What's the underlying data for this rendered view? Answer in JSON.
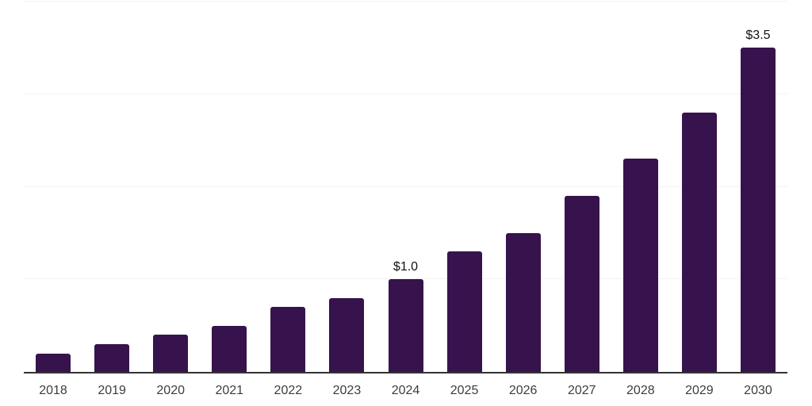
{
  "page": {
    "background": "#FFFFFF"
  },
  "chart": {
    "bar_color": "#36134D",
    "axis_line_color": "#333333",
    "gridline_color": "#F2F2F2",
    "tick_label_color": "#3D3D3D",
    "value_label_color": "#121212"
  },
  "chart_data": {
    "type": "bar",
    "categories": [
      "2018",
      "2019",
      "2020",
      "2021",
      "2022",
      "2023",
      "2024",
      "2025",
      "2026",
      "2027",
      "2028",
      "2029",
      "2030"
    ],
    "values": [
      0.2,
      0.3,
      0.4,
      0.5,
      0.7,
      0.8,
      1.0,
      1.3,
      1.5,
      1.9,
      2.3,
      2.8,
      3.5
    ],
    "data_labels": {
      "2024": "$1.0",
      "2030": "$3.5"
    },
    "title": "",
    "xlabel": "",
    "ylabel": "",
    "ylim": [
      0,
      4.0
    ],
    "gridlines_y": [
      1.0,
      2.0,
      3.0,
      4.0
    ],
    "grid": "horizontal",
    "legend": "none"
  }
}
